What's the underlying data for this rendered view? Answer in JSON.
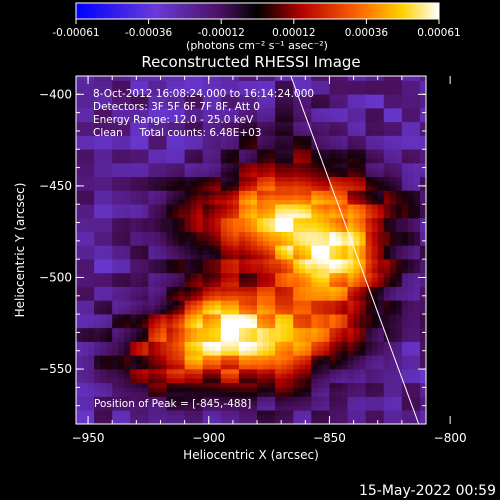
{
  "colorbar": {
    "ticks": [
      "-0.00061",
      "-0.00036",
      "-0.00012",
      "0.00012",
      "0.00036",
      "0.00061"
    ],
    "units": "(photons cm⁻² s⁻¹ asec⁻²)"
  },
  "plot": {
    "title": "Reconstructed RHESSI Image",
    "info_lines": [
      "8-Oct-2012 16:08:24.000 to 16:14:24.000",
      "Detectors: 3F 5F 6F 7F 8F, Att 0",
      "Energy Range: 12.0 - 25.0 keV",
      "Clean     Total counts: 6.48E+03"
    ],
    "peak_label": "Position of Peak = [-845,-488]"
  },
  "footer": {
    "timestamp": "15-May-2022 00:59"
  },
  "chart_data": {
    "type": "heatmap",
    "title": "Reconstructed RHESSI Image",
    "xlabel": "Heliocentric X (arcsec)",
    "ylabel": "Heliocentric Y (arcsec)",
    "xlim": [
      -955,
      -810
    ],
    "ylim": [
      -580,
      -390
    ],
    "x_ticks": [
      -950,
      -900,
      -850,
      -800
    ],
    "y_ticks": [
      -400,
      -450,
      -500,
      -550
    ],
    "color_scale": {
      "min": -0.00061,
      "max": 0.00061,
      "colormap": "blue-purple-red-yellow-white"
    },
    "peak_position": [
      -845,
      -488
    ],
    "limb_line": [
      [
        -866,
        -390
      ],
      [
        -813,
        -580
      ]
    ],
    "sources": [
      {
        "x": -870,
        "y": -468,
        "intensity": 0.00055
      },
      {
        "x": -848,
        "y": -490,
        "intensity": 0.00061
      },
      {
        "x": -890,
        "y": -520,
        "intensity": 0.00042
      },
      {
        "x": -905,
        "y": -535,
        "intensity": 0.00036
      },
      {
        "x": -878,
        "y": -545,
        "intensity": 0.0003
      },
      {
        "x": -855,
        "y": -528,
        "intensity": 0.00038
      },
      {
        "x": -898,
        "y": -470,
        "intensity": 0.0003
      },
      {
        "x": -926,
        "y": -545,
        "intensity": 0.0002
      },
      {
        "x": -838,
        "y": -460,
        "intensity": 0.00025
      },
      {
        "x": -870,
        "y": -430,
        "intensity": 0.00018
      }
    ]
  }
}
